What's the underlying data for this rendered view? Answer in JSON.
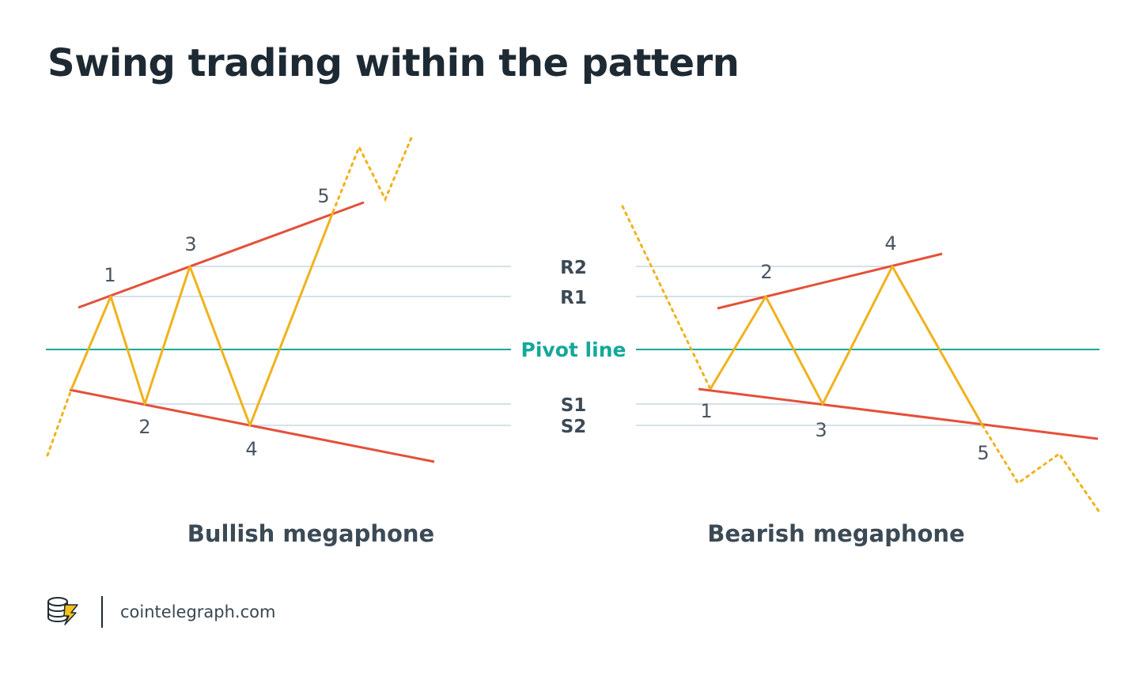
{
  "title": "Swing trading within the pattern",
  "levels": {
    "r2": "R2",
    "r1": "R1",
    "pivot": "Pivot line",
    "s1": "S1",
    "s2": "S2"
  },
  "bullish": {
    "caption": "Bullish megaphone",
    "points": [
      "1",
      "2",
      "3",
      "4",
      "5"
    ]
  },
  "bearish": {
    "caption": "Bearish megaphone",
    "points": [
      "1",
      "2",
      "3",
      "4",
      "5"
    ]
  },
  "footer": {
    "site": "cointelegraph.com",
    "logo_icon": "cointelegraph-logo-icon"
  },
  "colors": {
    "title": "#1e2a33",
    "level_label": "#3c4a55",
    "pivot": "#14a89a",
    "level_line": "#d6e1e8",
    "trend_line": "#e4503a",
    "price_path": "#f0b21c",
    "point_label": "#4a5560"
  }
}
